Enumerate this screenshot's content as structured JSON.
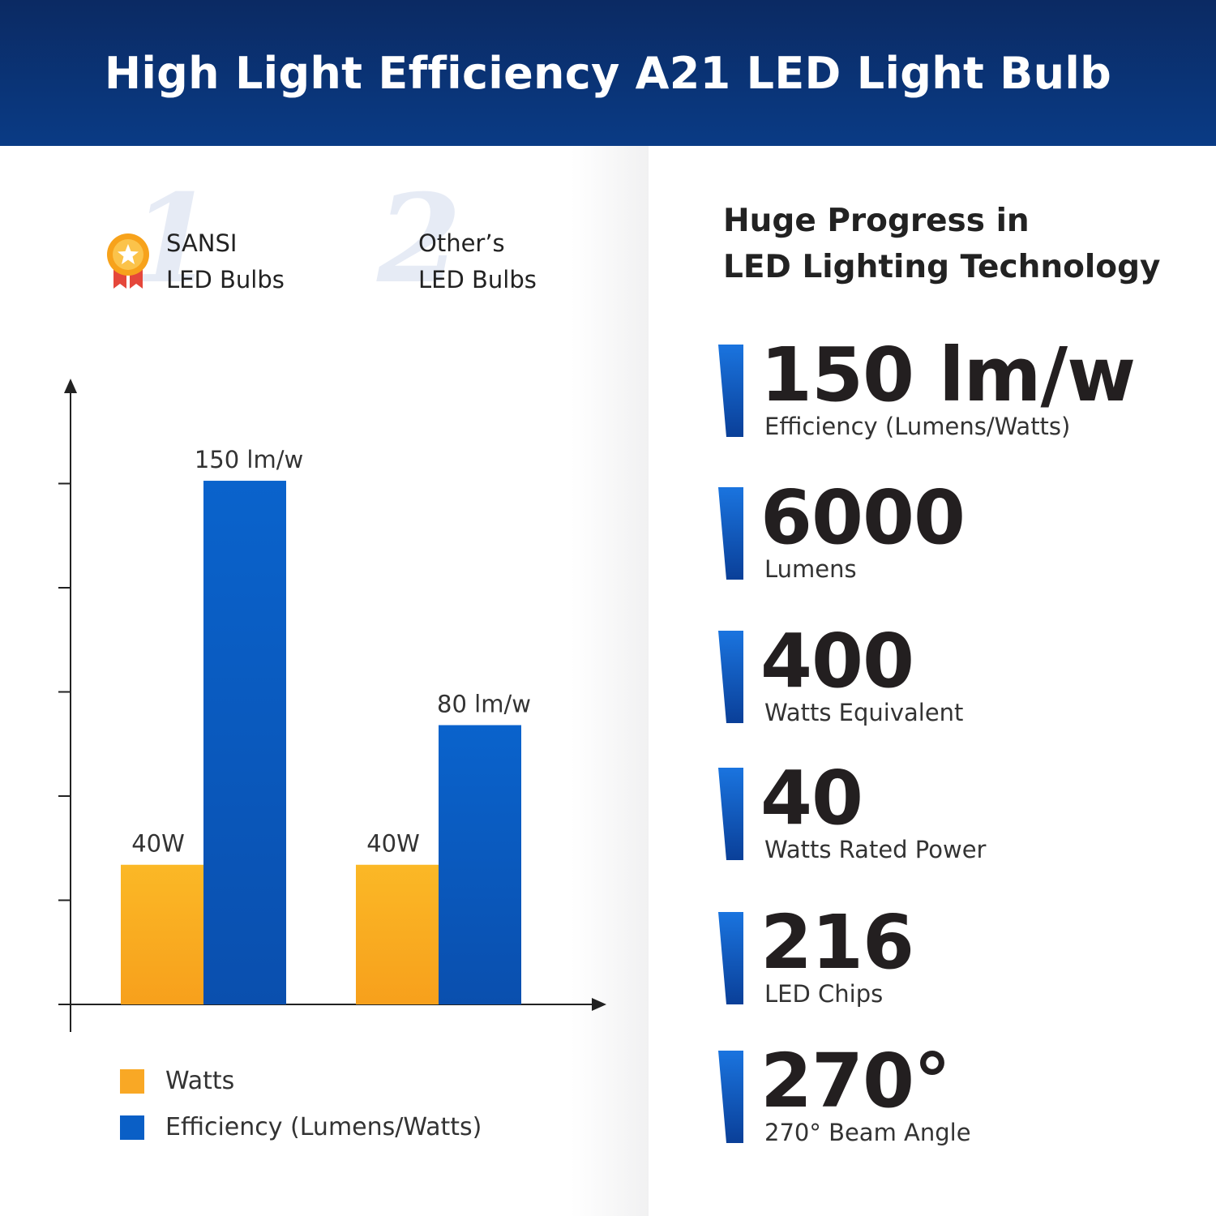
{
  "header": {
    "title": "High Light Efficiency A21 LED Light Bulb"
  },
  "brands": [
    {
      "rank": "1",
      "line1": "SANSI",
      "line2": "LED Bulbs"
    },
    {
      "rank": "2",
      "line1": "Other’s",
      "line2": "LED Bulbs"
    }
  ],
  "chart_data": {
    "type": "bar",
    "categories": [
      "SANSI LED Bulbs",
      "Other’s LED Bulbs"
    ],
    "series": [
      {
        "name": "Watts",
        "values": [
          40,
          40
        ],
        "labels": [
          "40W",
          "40W"
        ],
        "color": "#f9a825"
      },
      {
        "name": "Efficiency (Lumens/Watts)",
        "values": [
          150,
          80
        ],
        "labels": [
          "150 lm/w",
          "80 lm/w"
        ],
        "color": "#0a5fc6"
      }
    ],
    "ylim": [
      0,
      175
    ],
    "grid": false,
    "legend_position": "bottom-left"
  },
  "legend": [
    {
      "label": "Watts",
      "color": "#f9a825"
    },
    {
      "label": "Efficiency (Lumens/Watts)",
      "color": "#0a5fc6"
    }
  ],
  "right": {
    "heading_line1": "Huge Progress in",
    "heading_line2": "LED Lighting Technology",
    "stats": [
      {
        "value": "150 lm/w",
        "label": "Efficiency (Lumens/Watts)"
      },
      {
        "value": "6000",
        "label": "Lumens"
      },
      {
        "value": "400",
        "label": "Watts Equivalent"
      },
      {
        "value": "40",
        "label": "Watts Rated Power"
      },
      {
        "value": "216",
        "label": "LED Chips"
      },
      {
        "value": "270°",
        "label": "270° Beam Angle"
      }
    ]
  },
  "colors": {
    "header_bg": "#0a3b85",
    "accent_blue": "#0a5fc6",
    "accent_orange": "#f9a825"
  }
}
